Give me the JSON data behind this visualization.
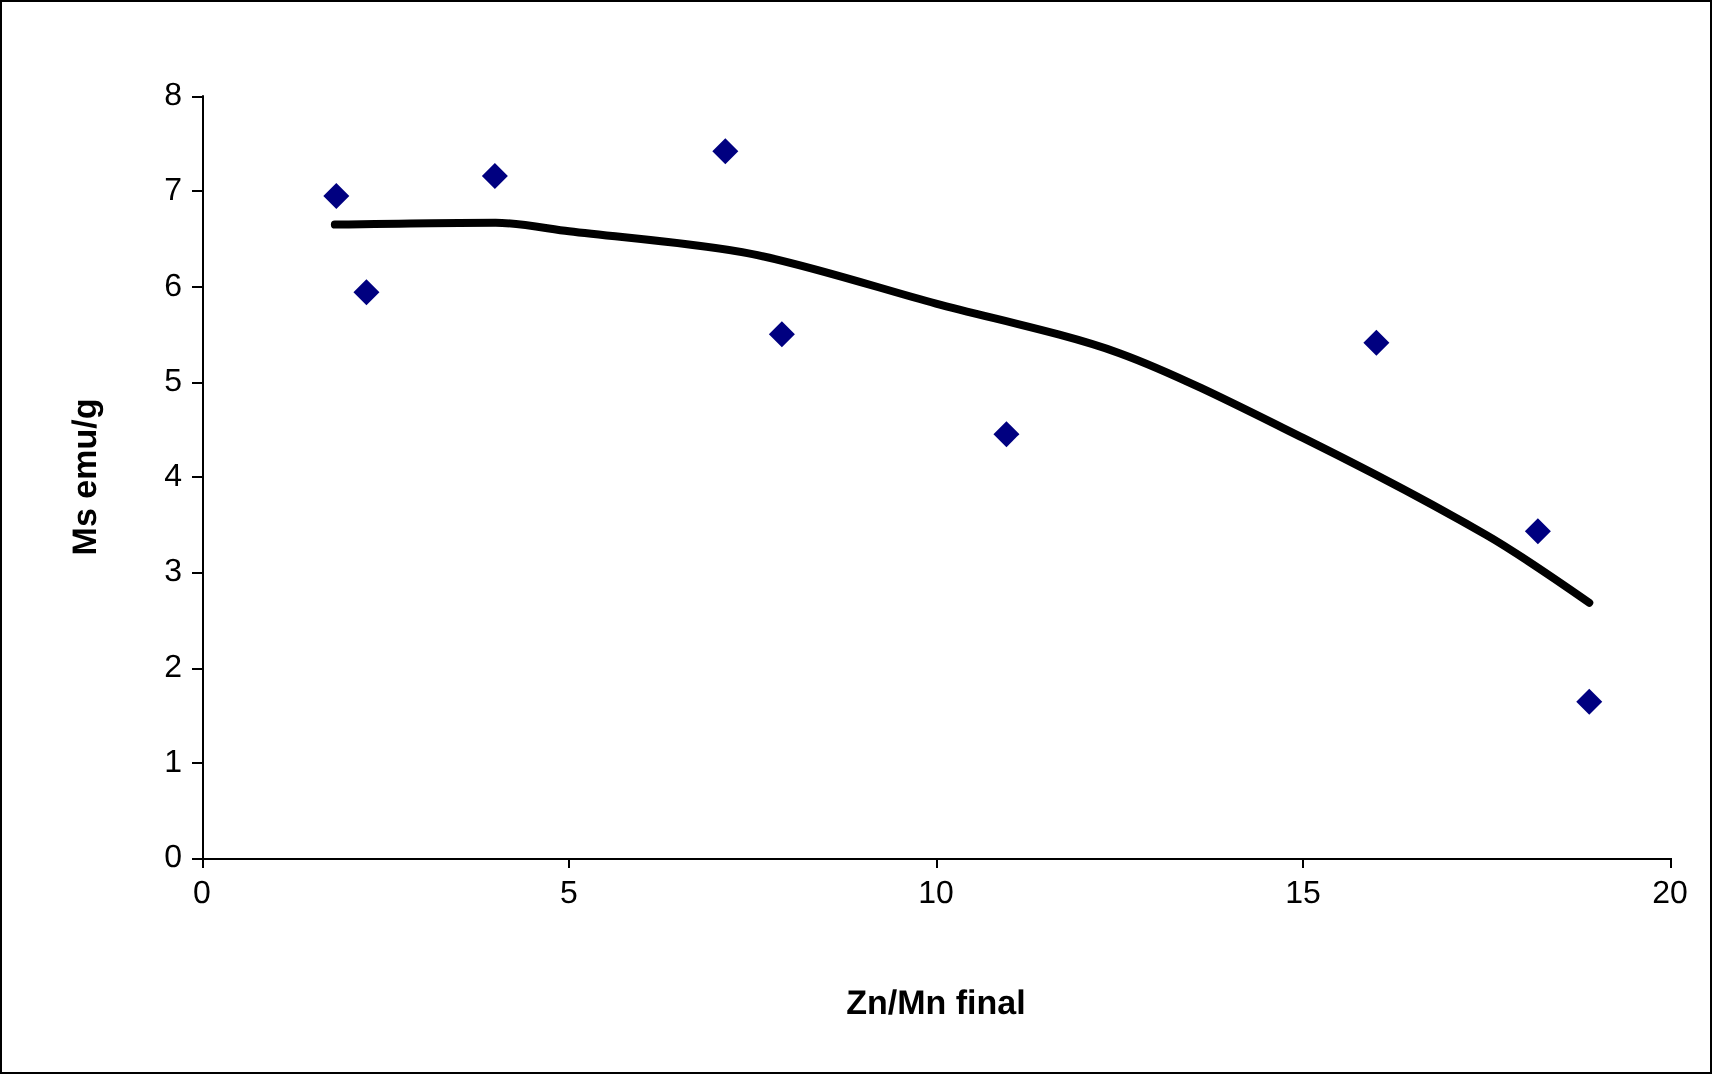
{
  "chart_data": {
    "type": "scatter",
    "xlabel": "Zn/Mn final",
    "ylabel": "Ms emu/g",
    "xlim": [
      0,
      20
    ],
    "xticks": [
      0,
      5,
      10,
      15,
      20
    ],
    "ylim": [
      0,
      8
    ],
    "yticks": [
      0,
      1,
      2,
      3,
      4,
      5,
      6,
      7,
      8
    ],
    "grid": false,
    "marker": "diamond",
    "series": [
      {
        "color": "#000080",
        "x": [
          1.83,
          2.24,
          3.99,
          7.13,
          7.9,
          10.96,
          16.0,
          18.2,
          18.9
        ],
        "values": [
          6.95,
          5.94,
          7.16,
          7.42,
          5.5,
          4.45,
          5.41,
          3.43,
          1.64
        ]
      },
      {
        "type": "line",
        "color": "#000000",
        "marker": "none",
        "line_style": "solid",
        "x": [
          1.81,
          4,
          5,
          7.5,
          10,
          12.5,
          15,
          17.5,
          18.9
        ],
        "values": [
          6.65,
          6.67,
          6.58,
          6.34,
          5.82,
          5.3,
          4.41,
          3.39,
          2.68
        ]
      }
    ]
  }
}
